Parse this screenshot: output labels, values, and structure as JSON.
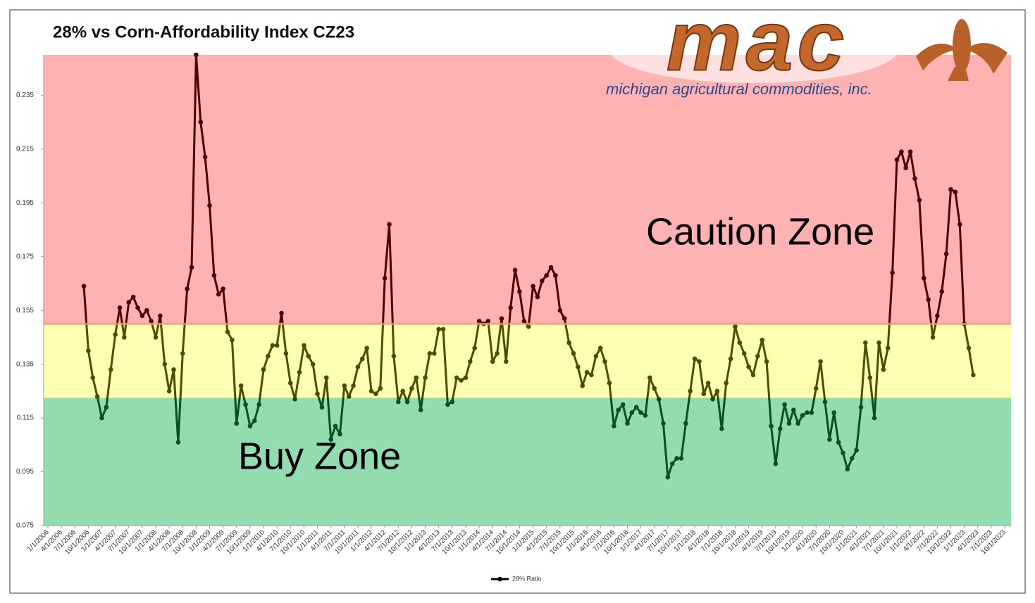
{
  "chart_data": {
    "type": "line",
    "title": "28% vs Corn-Affordability Index CZ23",
    "logo": {
      "wordmark": "mac",
      "tagline": "michigan agricultural commodities, inc."
    },
    "x": [
      "9/1/2006",
      "10/1/2006",
      "11/1/2006",
      "12/1/2006",
      "1/1/2007",
      "2/1/2007",
      "3/1/2007",
      "4/1/2007",
      "5/1/2007",
      "6/1/2007",
      "7/1/2007",
      "8/1/2007",
      "9/1/2007",
      "10/1/2007",
      "11/1/2007",
      "12/1/2007",
      "1/1/2008",
      "2/1/2008",
      "3/1/2008",
      "4/1/2008",
      "5/1/2008",
      "6/1/2008",
      "7/1/2008",
      "8/1/2008",
      "9/1/2008",
      "10/1/2008",
      "11/1/2008",
      "12/1/2008",
      "1/1/2009",
      "2/1/2009",
      "3/1/2009",
      "4/1/2009",
      "5/1/2009",
      "6/1/2009",
      "7/1/2009",
      "8/1/2009",
      "9/1/2009",
      "10/1/2009",
      "11/1/2009",
      "12/1/2009",
      "1/1/2010",
      "2/1/2010",
      "3/1/2010",
      "4/1/2010",
      "5/1/2010",
      "6/1/2010",
      "7/1/2010",
      "8/1/2010",
      "9/1/2010",
      "10/1/2010",
      "11/1/2010",
      "12/1/2010",
      "1/1/2011",
      "2/1/2011",
      "3/1/2011",
      "4/1/2011",
      "5/1/2011",
      "6/1/2011",
      "7/1/2011",
      "8/1/2011",
      "9/1/2011",
      "10/1/2011",
      "11/1/2011",
      "12/1/2011",
      "1/1/2012",
      "2/1/2012",
      "3/1/2012",
      "4/1/2012",
      "5/1/2012",
      "6/1/2012",
      "7/1/2012",
      "8/1/2012",
      "9/1/2012",
      "10/1/2012",
      "11/1/2012",
      "12/1/2012",
      "1/1/2013",
      "2/1/2013",
      "3/1/2013",
      "4/1/2013",
      "5/1/2013",
      "6/1/2013",
      "7/1/2013",
      "8/1/2013",
      "9/1/2013",
      "10/1/2013",
      "11/1/2013",
      "12/1/2013",
      "1/1/2014",
      "2/1/2014",
      "3/1/2014",
      "4/1/2014",
      "5/1/2014",
      "6/1/2014",
      "7/1/2014",
      "8/1/2014",
      "9/1/2014",
      "10/1/2014",
      "11/1/2014",
      "12/1/2014",
      "1/1/2015",
      "2/1/2015",
      "3/1/2015",
      "4/1/2015",
      "5/1/2015",
      "6/1/2015",
      "7/1/2015",
      "8/1/2015",
      "9/1/2015",
      "10/1/2015",
      "11/1/2015",
      "12/1/2015",
      "1/1/2016",
      "2/1/2016",
      "3/1/2016",
      "4/1/2016",
      "5/1/2016",
      "6/1/2016",
      "7/1/2016",
      "8/1/2016",
      "9/1/2016",
      "10/1/2016",
      "11/1/2016",
      "12/1/2016",
      "1/1/2017",
      "2/1/2017",
      "3/1/2017",
      "4/1/2017",
      "5/1/2017",
      "6/1/2017",
      "7/1/2017",
      "8/1/2017",
      "9/1/2017",
      "10/1/2017",
      "11/1/2017",
      "12/1/2017",
      "1/1/2018",
      "2/1/2018",
      "3/1/2018",
      "4/1/2018",
      "5/1/2018",
      "6/1/2018",
      "7/1/2018",
      "8/1/2018",
      "9/1/2018",
      "10/1/2018",
      "11/1/2018",
      "12/1/2018",
      "1/1/2019",
      "2/1/2019",
      "3/1/2019",
      "4/1/2019",
      "5/1/2019",
      "6/1/2019",
      "7/1/2019",
      "8/1/2019",
      "9/1/2019",
      "10/1/2019",
      "11/1/2019",
      "12/1/2019",
      "1/1/2020",
      "2/1/2020",
      "3/1/2020",
      "4/1/2020",
      "5/1/2020",
      "6/1/2020",
      "7/1/2020",
      "8/1/2020",
      "9/1/2020",
      "10/1/2020",
      "11/1/2020",
      "12/1/2020",
      "1/1/2021",
      "2/1/2021",
      "3/1/2021",
      "4/1/2021",
      "5/1/2021",
      "6/1/2021",
      "7/1/2021",
      "8/1/2021",
      "9/1/2021",
      "10/1/2021",
      "11/1/2021",
      "12/1/2021",
      "1/1/2022",
      "2/1/2022",
      "3/1/2022",
      "4/1/2022",
      "5/1/2022",
      "6/1/2022",
      "7/1/2022",
      "8/1/2022",
      "9/1/2022",
      "10/1/2022",
      "11/1/2022",
      "12/1/2022",
      "1/1/2023",
      "2/1/2023",
      "3/1/2023"
    ],
    "series": [
      {
        "name": "28% Ratio",
        "color": "#000000",
        "values": [
          0.164,
          0.14,
          0.13,
          0.123,
          0.115,
          0.119,
          0.133,
          0.146,
          0.156,
          0.145,
          0.158,
          0.16,
          0.156,
          0.153,
          0.155,
          0.151,
          0.145,
          0.153,
          0.135,
          0.125,
          0.133,
          0.106,
          0.139,
          0.163,
          0.171,
          0.25,
          0.225,
          0.212,
          0.194,
          0.168,
          0.161,
          0.163,
          0.147,
          0.144,
          0.113,
          0.127,
          0.12,
          0.112,
          0.114,
          0.12,
          0.133,
          0.138,
          0.142,
          0.142,
          0.154,
          0.139,
          0.128,
          0.122,
          0.132,
          0.142,
          0.138,
          0.135,
          0.124,
          0.119,
          0.13,
          0.107,
          0.112,
          0.109,
          0.127,
          0.123,
          0.127,
          0.134,
          0.137,
          0.141,
          0.125,
          0.124,
          0.126,
          0.167,
          0.187,
          0.138,
          0.121,
          0.125,
          0.121,
          0.126,
          0.13,
          0.118,
          0.13,
          0.139,
          0.139,
          0.148,
          0.148,
          0.12,
          0.121,
          0.13,
          0.129,
          0.13,
          0.136,
          0.141,
          0.151,
          0.15,
          0.151,
          0.136,
          0.139,
          0.152,
          0.136,
          0.156,
          0.17,
          0.162,
          0.151,
          0.149,
          0.164,
          0.16,
          0.166,
          0.168,
          0.171,
          0.168,
          0.155,
          0.152,
          0.143,
          0.139,
          0.134,
          0.127,
          0.132,
          0.131,
          0.138,
          0.141,
          0.136,
          0.128,
          0.112,
          0.118,
          0.12,
          0.113,
          0.117,
          0.119,
          0.117,
          0.116,
          0.13,
          0.126,
          0.122,
          0.113,
          0.093,
          0.098,
          0.1,
          0.1,
          0.113,
          0.125,
          0.137,
          0.136,
          0.124,
          0.128,
          0.122,
          0.125,
          0.111,
          0.128,
          0.137,
          0.149,
          0.143,
          0.139,
          0.134,
          0.131,
          0.138,
          0.144,
          0.136,
          0.112,
          0.098,
          0.111,
          0.12,
          0.113,
          0.118,
          0.113,
          0.116,
          0.117,
          0.117,
          0.126,
          0.136,
          0.121,
          0.107,
          0.117,
          0.106,
          0.102,
          0.096,
          0.1,
          0.103,
          0.119,
          0.143,
          0.13,
          0.115,
          0.143,
          0.133,
          0.141,
          0.169,
          0.211,
          0.214,
          0.208,
          0.214,
          0.204,
          0.196,
          0.167,
          0.159,
          0.145,
          0.153,
          0.162,
          0.176,
          0.2,
          0.199,
          0.187,
          0.15,
          0.141,
          0.131
        ]
      }
    ],
    "zones": [
      {
        "name": "Caution Zone",
        "from": 0.15,
        "to": 0.25,
        "color": "#ff0000",
        "opacity": 0.3
      },
      {
        "from": 0.1225,
        "to": 0.15,
        "color": "#ffff00",
        "opacity": 0.3
      },
      {
        "name": "Buy Zone",
        "from": 0.075,
        "to": 0.1225,
        "color": "#0fb250",
        "opacity": 0.45
      }
    ],
    "ylim": [
      0.075,
      0.25
    ],
    "yticks": [
      0.075,
      0.095,
      0.115,
      0.135,
      0.155,
      0.175,
      0.195,
      0.215,
      0.235
    ],
    "xlim": [
      "1/1/2006",
      "10/1/2023"
    ],
    "xticks": [
      "1/1/2006",
      "4/1/2006",
      "7/1/2006",
      "10/1/2006",
      "1/1/2007",
      "4/1/2007",
      "7/1/2007",
      "10/1/2007",
      "1/1/2008",
      "4/1/2008",
      "7/1/2008",
      "10/1/2008",
      "1/1/2009",
      "4/1/2009",
      "7/1/2009",
      "10/1/2009",
      "1/1/2010",
      "4/1/2010",
      "7/1/2010",
      "10/1/2010",
      "1/1/2011",
      "4/1/2011",
      "7/1/2011",
      "10/1/2011",
      "1/1/2012",
      "4/1/2012",
      "7/1/2012",
      "10/1/2012",
      "1/1/2013",
      "4/1/2013",
      "7/1/2013",
      "10/1/2013",
      "1/1/2014",
      "4/1/2014",
      "7/1/2014",
      "10/1/2014",
      "1/1/2015",
      "4/1/2015",
      "7/1/2015",
      "10/1/2015",
      "1/1/2016",
      "4/1/2016",
      "7/1/2016",
      "10/1/2016",
      "1/1/2017",
      "4/1/2017",
      "7/1/2017",
      "10/1/2017",
      "1/1/2018",
      "4/1/2018",
      "7/1/2018",
      "10/1/2018",
      "1/1/2019",
      "4/1/2019",
      "7/1/2019",
      "10/1/2019",
      "1/1/2020",
      "4/1/2020",
      "7/1/2020",
      "10/1/2020",
      "1/1/2021",
      "4/1/2021",
      "7/1/2021",
      "10/1/2021",
      "1/1/2022",
      "4/1/2022",
      "7/1/2022",
      "10/1/2022",
      "1/1/2023",
      "4/1/2023",
      "7/1/2023",
      "10/1/2023"
    ],
    "legend": "bottom"
  }
}
